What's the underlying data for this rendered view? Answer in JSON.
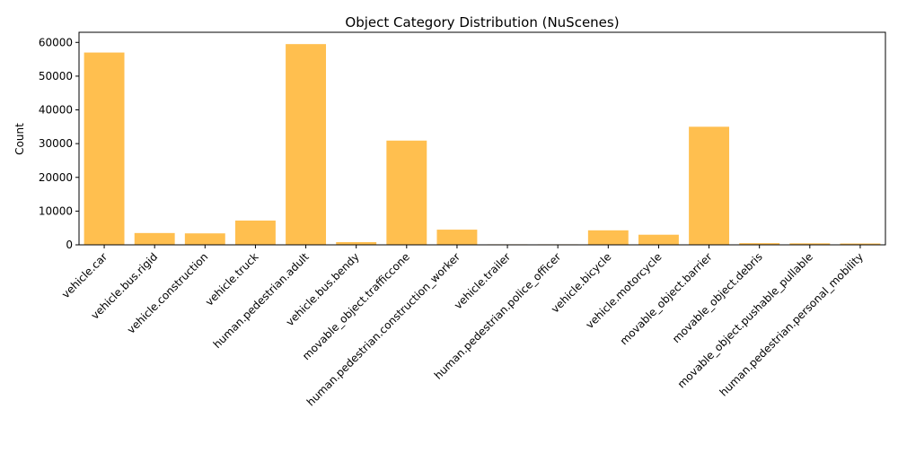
{
  "chart_data": {
    "type": "bar",
    "title": "Object Category Distribution (NuScenes)",
    "xlabel": "",
    "ylabel": "Count",
    "ylim": [
      0,
      63000
    ],
    "yticks": [
      0,
      10000,
      20000,
      30000,
      40000,
      50000,
      60000
    ],
    "grid": false,
    "legend": "none",
    "bar_color": "#ffbf4f",
    "categories": [
      "vehicle.car",
      "vehicle.bus.rigid",
      "vehicle.construction",
      "vehicle.truck",
      "human.pedestrian.adult",
      "vehicle.bus.bendy",
      "movable_object.trafficcone",
      "human.pedestrian.construction_worker",
      "vehicle.trailer",
      "human.pedestrian.police_officer",
      "vehicle.bicycle",
      "vehicle.motorcycle",
      "movable_object.barrier",
      "movable_object.debris",
      "movable_object.pushable_pullable",
      "human.pedestrian.personal_mobility"
    ],
    "values": [
      57000,
      3500,
      3400,
      7200,
      59500,
      800,
      30900,
      4500,
      150,
      150,
      4300,
      3000,
      35000,
      500,
      450,
      400
    ]
  }
}
